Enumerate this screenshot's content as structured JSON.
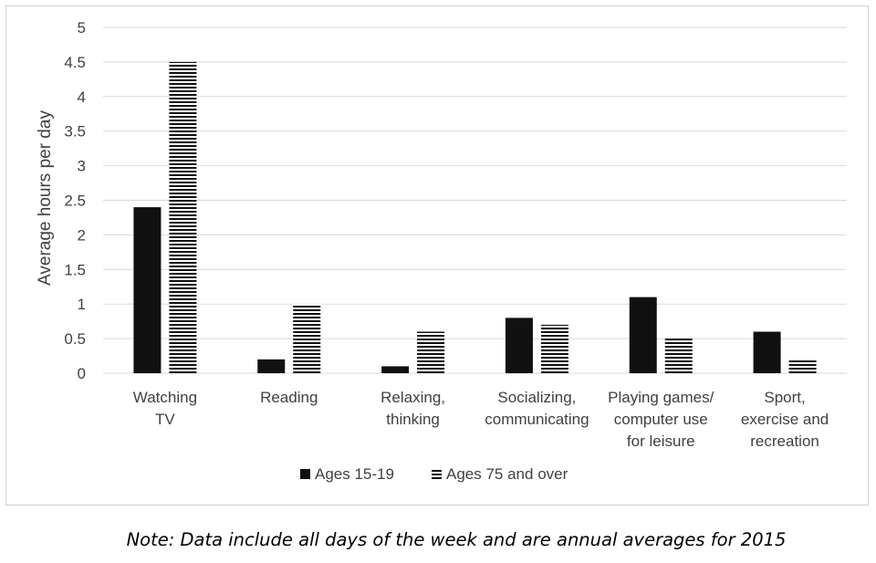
{
  "chart_data": {
    "type": "bar",
    "categories": [
      [
        "Watching",
        "TV"
      ],
      [
        "Reading"
      ],
      [
        "Relaxing,",
        "thinking"
      ],
      [
        "Socializing,",
        "communicating"
      ],
      [
        "Playing games/",
        "computer use",
        "for leisure"
      ],
      [
        "Sport,",
        "exercise and",
        "recreation"
      ]
    ],
    "series": [
      {
        "name": "Ages 15-19",
        "values": [
          2.4,
          0.2,
          0.1,
          0.8,
          1.1,
          0.6
        ],
        "fill": "solid",
        "color": "#111111"
      },
      {
        "name": "Ages 75 and over",
        "values": [
          4.5,
          1.0,
          0.6,
          0.7,
          0.5,
          0.2
        ],
        "fill": "horizontal-stripes",
        "color": "#111111"
      }
    ],
    "xlabel": "",
    "ylabel": "Average hours per day",
    "ylim": [
      0,
      5
    ],
    "yticks": [
      "0",
      "0.5",
      "1",
      "1.5",
      "2",
      "2.5",
      "3",
      "3.5",
      "4",
      "4.5",
      "5"
    ],
    "grid": true,
    "legend_position": "bottom"
  },
  "note": "Note: Data include all days of the week and are annual averages for 2015",
  "colors": {
    "gridline": "#d9d9d9",
    "axis_text": "#404040",
    "bar": "#111111"
  }
}
